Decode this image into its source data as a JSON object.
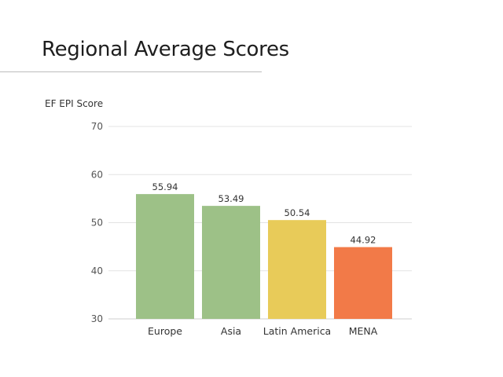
{
  "chart_data": {
    "type": "bar",
    "title": "Regional Average Scores",
    "ylabel": "EF EPI Score",
    "xlabel": "",
    "categories": [
      "Europe",
      "Asia",
      "Latin America",
      "MENA"
    ],
    "values": [
      55.94,
      53.49,
      50.54,
      44.92
    ],
    "value_labels": [
      "55.94",
      "53.49",
      "50.54",
      "44.92"
    ],
    "colors": [
      "#9dc187",
      "#9dc187",
      "#e8cb59",
      "#f27a48"
    ],
    "ylim": [
      30,
      70
    ],
    "yticks": [
      30,
      40,
      50,
      60,
      70
    ],
    "grid": true,
    "legend": "none"
  }
}
